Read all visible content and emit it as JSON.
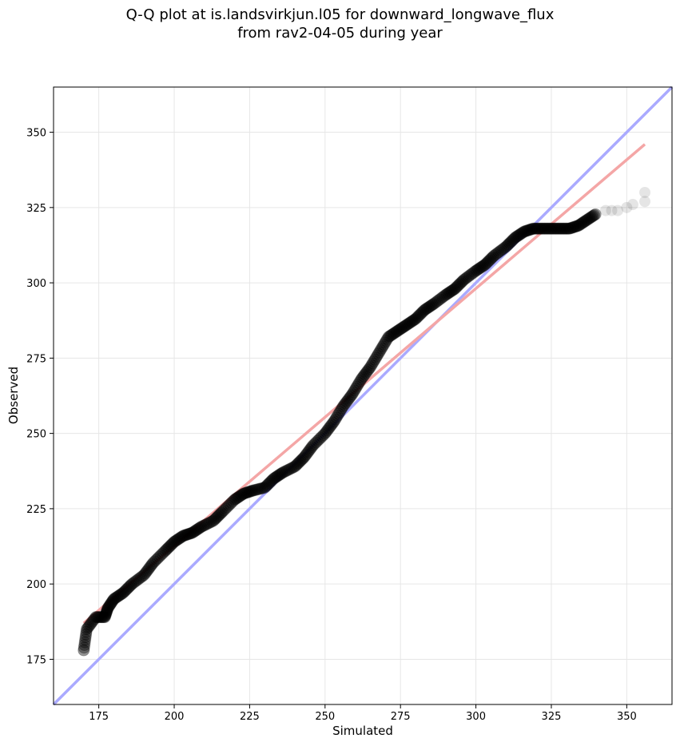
{
  "chart_data": {
    "type": "scatter",
    "title_line1": "Q-Q plot at is.landsvirkjun.l05 for downward_longwave_flux",
    "title_line2": "from rav2-04-05 during year",
    "xlabel": "Simulated",
    "ylabel": "Observed",
    "xlim": [
      160,
      365
    ],
    "ylim": [
      160,
      365
    ],
    "xticks": [
      175,
      200,
      225,
      250,
      275,
      300,
      325,
      350
    ],
    "yticks": [
      175,
      200,
      225,
      250,
      275,
      300,
      325,
      350
    ],
    "grid": true,
    "reference_lines": [
      {
        "name": "1:1",
        "color": "#aaaaff",
        "x": [
          160,
          365
        ],
        "y": [
          160,
          365
        ]
      },
      {
        "name": "fit",
        "color": "#f4a6a6",
        "x": [
          170,
          356
        ],
        "y": [
          187,
          346
        ]
      }
    ],
    "quantile_curve": {
      "x": [
        170,
        171,
        174,
        177,
        178,
        180,
        183,
        186,
        190,
        193,
        197,
        200,
        203,
        206,
        209,
        213,
        216,
        220,
        223,
        226,
        230,
        233,
        236,
        240,
        243,
        246,
        250,
        253,
        256,
        259,
        262,
        265,
        268,
        271,
        274,
        277,
        280,
        283,
        286,
        290,
        293,
        296,
        300,
        303,
        306,
        310,
        313,
        316,
        319,
        322,
        325,
        328,
        331,
        334,
        337,
        340
      ],
      "y": [
        178,
        185,
        189,
        189,
        192,
        195,
        197,
        200,
        203,
        207,
        211,
        214,
        216,
        217,
        219,
        221,
        224,
        228,
        230,
        231,
        232,
        235,
        237,
        239,
        242,
        246,
        250,
        254,
        259,
        263,
        268,
        272,
        277,
        282,
        284,
        286,
        288,
        291,
        293,
        296,
        298,
        301,
        304,
        306,
        309,
        312,
        315,
        317,
        318,
        318,
        318,
        318,
        318,
        319,
        321,
        323
      ],
      "outliers_x": [
        170,
        171,
        177,
        343,
        345,
        347,
        350,
        352,
        356,
        356
      ],
      "outliers_y": [
        178,
        185,
        189,
        324,
        324,
        324,
        325,
        326,
        327,
        330
      ]
    }
  }
}
